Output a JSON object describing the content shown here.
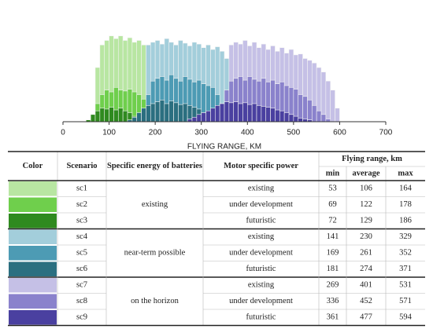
{
  "chart_data": {
    "type": "histogram",
    "xlabel": "FLYING RANGE, KM",
    "xlim": [
      0,
      700
    ],
    "xticks": [
      0,
      100,
      200,
      300,
      400,
      500,
      600,
      700
    ],
    "ylim": [
      0,
      100
    ],
    "series": [
      {
        "color": "#b8e6a2",
        "bins": [
          70,
          80,
          90,
          100,
          110,
          120,
          130,
          140,
          150,
          160,
          170,
          180,
          190
        ],
        "values": [
          60,
          85,
          90,
          95,
          92,
          95,
          90,
          93,
          88,
          90,
          85,
          70
        ]
      },
      {
        "color": "#6fcf4c",
        "bins": [
          70,
          80,
          90,
          100,
          110,
          120,
          130,
          140,
          150,
          160,
          170,
          180
        ],
        "values": [
          20,
          30,
          35,
          33,
          38,
          35,
          34,
          36,
          33,
          30,
          25
        ]
      },
      {
        "color": "#2f8a1f",
        "bins": [
          50,
          60,
          70,
          80,
          90,
          100,
          110,
          120,
          130,
          140,
          150,
          160,
          170
        ],
        "values": [
          2,
          8,
          12,
          15,
          14,
          16,
          13,
          15,
          12,
          10,
          6,
          3
        ]
      },
      {
        "color": "#a3cedb",
        "bins": [
          180,
          190,
          200,
          210,
          220,
          230,
          240,
          250,
          260,
          270,
          280,
          290,
          300,
          310,
          320,
          330,
          340,
          350,
          360,
          370,
          380
        ],
        "values": [
          85,
          88,
          90,
          86,
          92,
          88,
          85,
          90,
          87,
          84,
          88,
          86,
          82,
          85,
          80,
          83,
          78,
          70,
          50,
          20
        ]
      },
      {
        "color": "#4d9bb4",
        "bins": [
          170,
          180,
          190,
          200,
          210,
          220,
          230,
          240,
          250,
          260,
          270,
          280,
          290,
          300,
          310,
          320,
          330,
          340,
          350,
          360
        ],
        "values": [
          10,
          30,
          45,
          48,
          50,
          46,
          52,
          48,
          45,
          50,
          47,
          44,
          46,
          42,
          40,
          38,
          30,
          20,
          8
        ]
      },
      {
        "color": "#2b6f80",
        "bins": [
          140,
          150,
          160,
          170,
          180,
          190,
          200,
          210,
          220,
          230,
          240,
          250,
          260,
          270,
          280,
          290,
          300,
          310,
          320,
          330
        ],
        "values": [
          2,
          5,
          10,
          15,
          18,
          20,
          22,
          24,
          20,
          23,
          21,
          19,
          20,
          18,
          16,
          14,
          10,
          6,
          3
        ]
      },
      {
        "color": "#c5c0e6",
        "bins": [
          360,
          370,
          380,
          390,
          400,
          410,
          420,
          430,
          440,
          450,
          460,
          470,
          480,
          490,
          500,
          510,
          520,
          530,
          540,
          550,
          560,
          570,
          580,
          590,
          600
        ],
        "values": [
          85,
          88,
          86,
          90,
          84,
          88,
          82,
          86,
          80,
          84,
          78,
          82,
          76,
          80,
          74,
          75,
          70,
          68,
          65,
          60,
          55,
          45,
          35,
          15
        ]
      },
      {
        "color": "#8a82cc",
        "bins": [
          340,
          350,
          360,
          370,
          380,
          390,
          400,
          410,
          420,
          430,
          440,
          450,
          460,
          470,
          480,
          490,
          500,
          510,
          520,
          530,
          540,
          550,
          560,
          570,
          580
        ],
        "values": [
          20,
          35,
          45,
          48,
          50,
          46,
          50,
          47,
          45,
          48,
          44,
          46,
          42,
          44,
          40,
          38,
          36,
          30,
          28,
          24,
          18,
          12,
          8,
          3
        ]
      },
      {
        "color": "#4a40a0",
        "bins": [
          270,
          280,
          290,
          300,
          310,
          320,
          330,
          340,
          350,
          360,
          370,
          380,
          390,
          400,
          410,
          420,
          430,
          440,
          450,
          460,
          470,
          480,
          490,
          500,
          510,
          520,
          530,
          540
        ],
        "values": [
          3,
          5,
          8,
          10,
          12,
          15,
          18,
          20,
          22,
          21,
          22,
          20,
          21,
          19,
          20,
          18,
          17,
          16,
          15,
          13,
          12,
          10,
          8,
          6,
          4,
          3,
          2
        ]
      }
    ]
  },
  "table": {
    "headers": {
      "color": "Color",
      "scenario": "Scenario",
      "energy": "Specific energy of batteries",
      "motor": "Motor specific power",
      "range": "Flying range, km",
      "min": "min",
      "average": "average",
      "max": "max"
    },
    "groups": [
      {
        "energy": "existing",
        "rows": [
          {
            "scenario": "sc1",
            "motor": "existing",
            "min": 53,
            "average": 106,
            "max": 164
          },
          {
            "scenario": "sc2",
            "motor": "under development",
            "min": 69,
            "average": 122,
            "max": 178
          },
          {
            "scenario": "sc3",
            "motor": "futuristic",
            "min": 72,
            "average": 129,
            "max": 186
          }
        ]
      },
      {
        "energy": "near-term possible",
        "rows": [
          {
            "scenario": "sc4",
            "motor": "existing",
            "min": 141,
            "average": 230,
            "max": 329
          },
          {
            "scenario": "sc5",
            "motor": "under development",
            "min": 169,
            "average": 261,
            "max": 352
          },
          {
            "scenario": "sc6",
            "motor": "futuristic",
            "min": 181,
            "average": 274,
            "max": 371
          }
        ]
      },
      {
        "energy": "on the horizon",
        "rows": [
          {
            "scenario": "sc7",
            "motor": "existing",
            "min": 269,
            "average": 401,
            "max": 531
          },
          {
            "scenario": "sc8",
            "motor": "under development",
            "min": 336,
            "average": 452,
            "max": 571
          },
          {
            "scenario": "sc9",
            "motor": "futuristic",
            "min": 361,
            "average": 477,
            "max": 594
          }
        ]
      }
    ]
  }
}
